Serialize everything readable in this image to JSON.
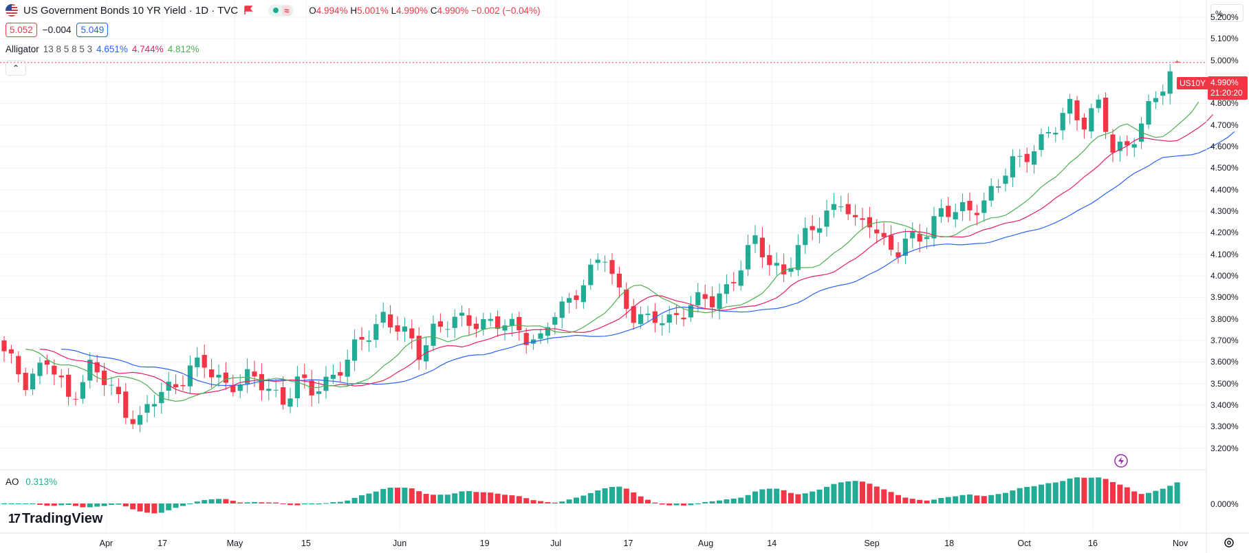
{
  "header": {
    "title": "US Government Bonds 10 YR Yield · 1D · TVC",
    "ohlc": {
      "o_label": "O",
      "o_value": "4.994%",
      "h_label": "H",
      "h_value": "5.001%",
      "l_label": "L",
      "l_value": "4.990%",
      "c_label": "C",
      "c_value": "4.990%",
      "change": "−0.002 (−0.04%)"
    },
    "status_wave": "≈"
  },
  "quote": {
    "sell": "5.052",
    "spread": "−0.004",
    "buy": "5.049"
  },
  "alligator": {
    "label": "Alligator",
    "params": "13 8 5 8 5 3",
    "jaw": "4.651%",
    "teeth": "4.744%",
    "lips": "4.812%"
  },
  "ao": {
    "label": "AO",
    "value": "0.313%",
    "axis_label": "0.000%"
  },
  "price_axis": {
    "unit_button": "%",
    "ticks": [
      "5.200%",
      "5.100%",
      "5.000%",
      "4.900%",
      "4.800%",
      "4.700%",
      "4.600%",
      "4.500%",
      "4.400%",
      "4.300%",
      "4.200%",
      "4.100%",
      "4.000%",
      "3.900%",
      "3.800%",
      "3.700%",
      "3.600%",
      "3.500%",
      "3.400%",
      "3.300%",
      "3.200%"
    ],
    "last_price_symbol": "US10Y",
    "last_price": "4.990%",
    "countdown": "21:20:20"
  },
  "time_axis": {
    "labels": [
      "Apr",
      "17",
      "May",
      "15",
      "Jun",
      "19",
      "Jul",
      "17",
      "Aug",
      "14",
      "Sep",
      "18",
      "Oct",
      "16",
      "Nov"
    ]
  },
  "logo": {
    "text": "TradingView",
    "mark": "17"
  },
  "colors": {
    "up": "#22ab94",
    "down": "#f23645",
    "jaw": "#2962ff",
    "teeth": "#e91e63",
    "lips": "#4caf50",
    "grid": "#f0f3fa"
  },
  "chart_data": {
    "type": "candlestick",
    "title": "US Government Bonds 10 YR Yield · 1D · TVC",
    "ylim": [
      3.1,
      5.28
    ],
    "xlabel": "",
    "ylabel": "",
    "candles": [],
    "alligator": {},
    "ao_histogram": []
  }
}
